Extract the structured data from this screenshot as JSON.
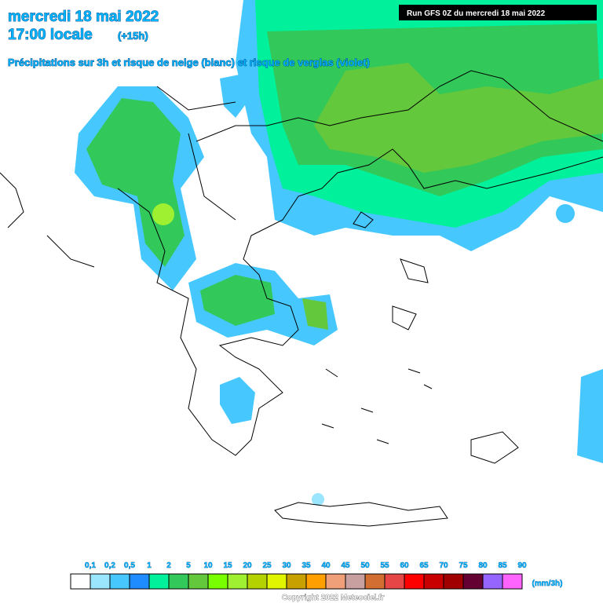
{
  "header": {
    "date": "mercredi 18 mai 2022",
    "time": "17:00 locale",
    "offset": "(+15h)",
    "subtitle": "Précipitations sur 3h et risque de neige (blanc) et risque de verglas (violet)",
    "run": "Run GFS 0Z du mercredi 18 mai 2022"
  },
  "legend": {
    "labels": [
      "0,1",
      "0,2",
      "0,5",
      "1",
      "2",
      "5",
      "10",
      "15",
      "20",
      "25",
      "30",
      "35",
      "40",
      "45",
      "50",
      "55",
      "60",
      "65",
      "70",
      "75",
      "80",
      "85",
      "90"
    ],
    "colors": [
      "#ffffff",
      "#9be6ff",
      "#46c8ff",
      "#1e8cff",
      "#00f09b",
      "#32c85a",
      "#64c83c",
      "#78ff00",
      "#a0f032",
      "#b4d200",
      "#e1f500",
      "#c8a000",
      "#ffa000",
      "#f0a078",
      "#c8a0a0",
      "#d26e32",
      "#e64646",
      "#ff0000",
      "#c80000",
      "#a00000",
      "#640032",
      "#9664ff",
      "#ff64ff"
    ],
    "unit": "(mm/3h)"
  },
  "footer": {
    "copyright": "Copyright 2022 Meteociel.fr"
  }
}
